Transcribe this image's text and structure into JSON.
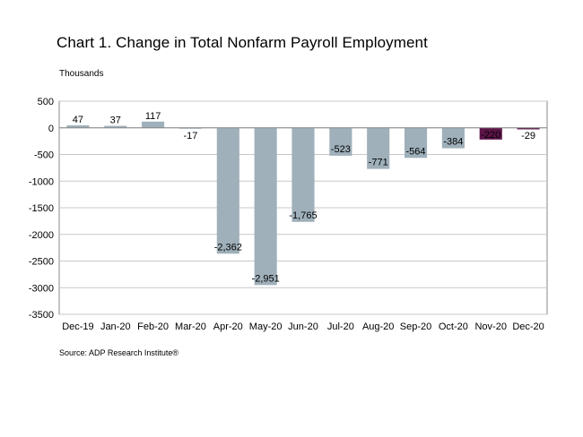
{
  "chart_data": {
    "type": "bar",
    "title": "Chart 1. Change in Total Nonfarm Payroll Employment",
    "ylabel": "Thousands",
    "xlabel": "",
    "source": "Source: ADP Research Institute®",
    "categories": [
      "Dec-19",
      "Jan-20",
      "Feb-20",
      "Mar-20",
      "Apr-20",
      "May-20",
      "Jun-20",
      "Jul-20",
      "Aug-20",
      "Sep-20",
      "Oct-20",
      "Nov-20",
      "Dec-20"
    ],
    "values": [
      47,
      37,
      117,
      -17,
      -2362,
      -2951,
      -1765,
      -523,
      -771,
      -564,
      -384,
      -220,
      -29
    ],
    "data_labels": [
      "47",
      "37",
      "117",
      "-17",
      "-2,362",
      "-2,951",
      "-1,765",
      "-523",
      "-771",
      "-564",
      "-384",
      "-220",
      "-29"
    ],
    "highlight_index": [
      11,
      12
    ],
    "ylim": [
      -3500,
      500
    ],
    "yticks": [
      500,
      0,
      -500,
      -1000,
      -1500,
      -2000,
      -2500,
      -3000,
      -3500
    ],
    "ytick_labels": [
      "500",
      "0",
      "-500",
      "-1000",
      "-1500",
      "-2000",
      "-2500",
      "-3000",
      "-3500"
    ],
    "grid": true,
    "legend": "none",
    "colors": {
      "bar": "#9fb0ba",
      "highlight": "#5c1448",
      "grid": "#c8c8c8",
      "axis": "#888888"
    }
  }
}
